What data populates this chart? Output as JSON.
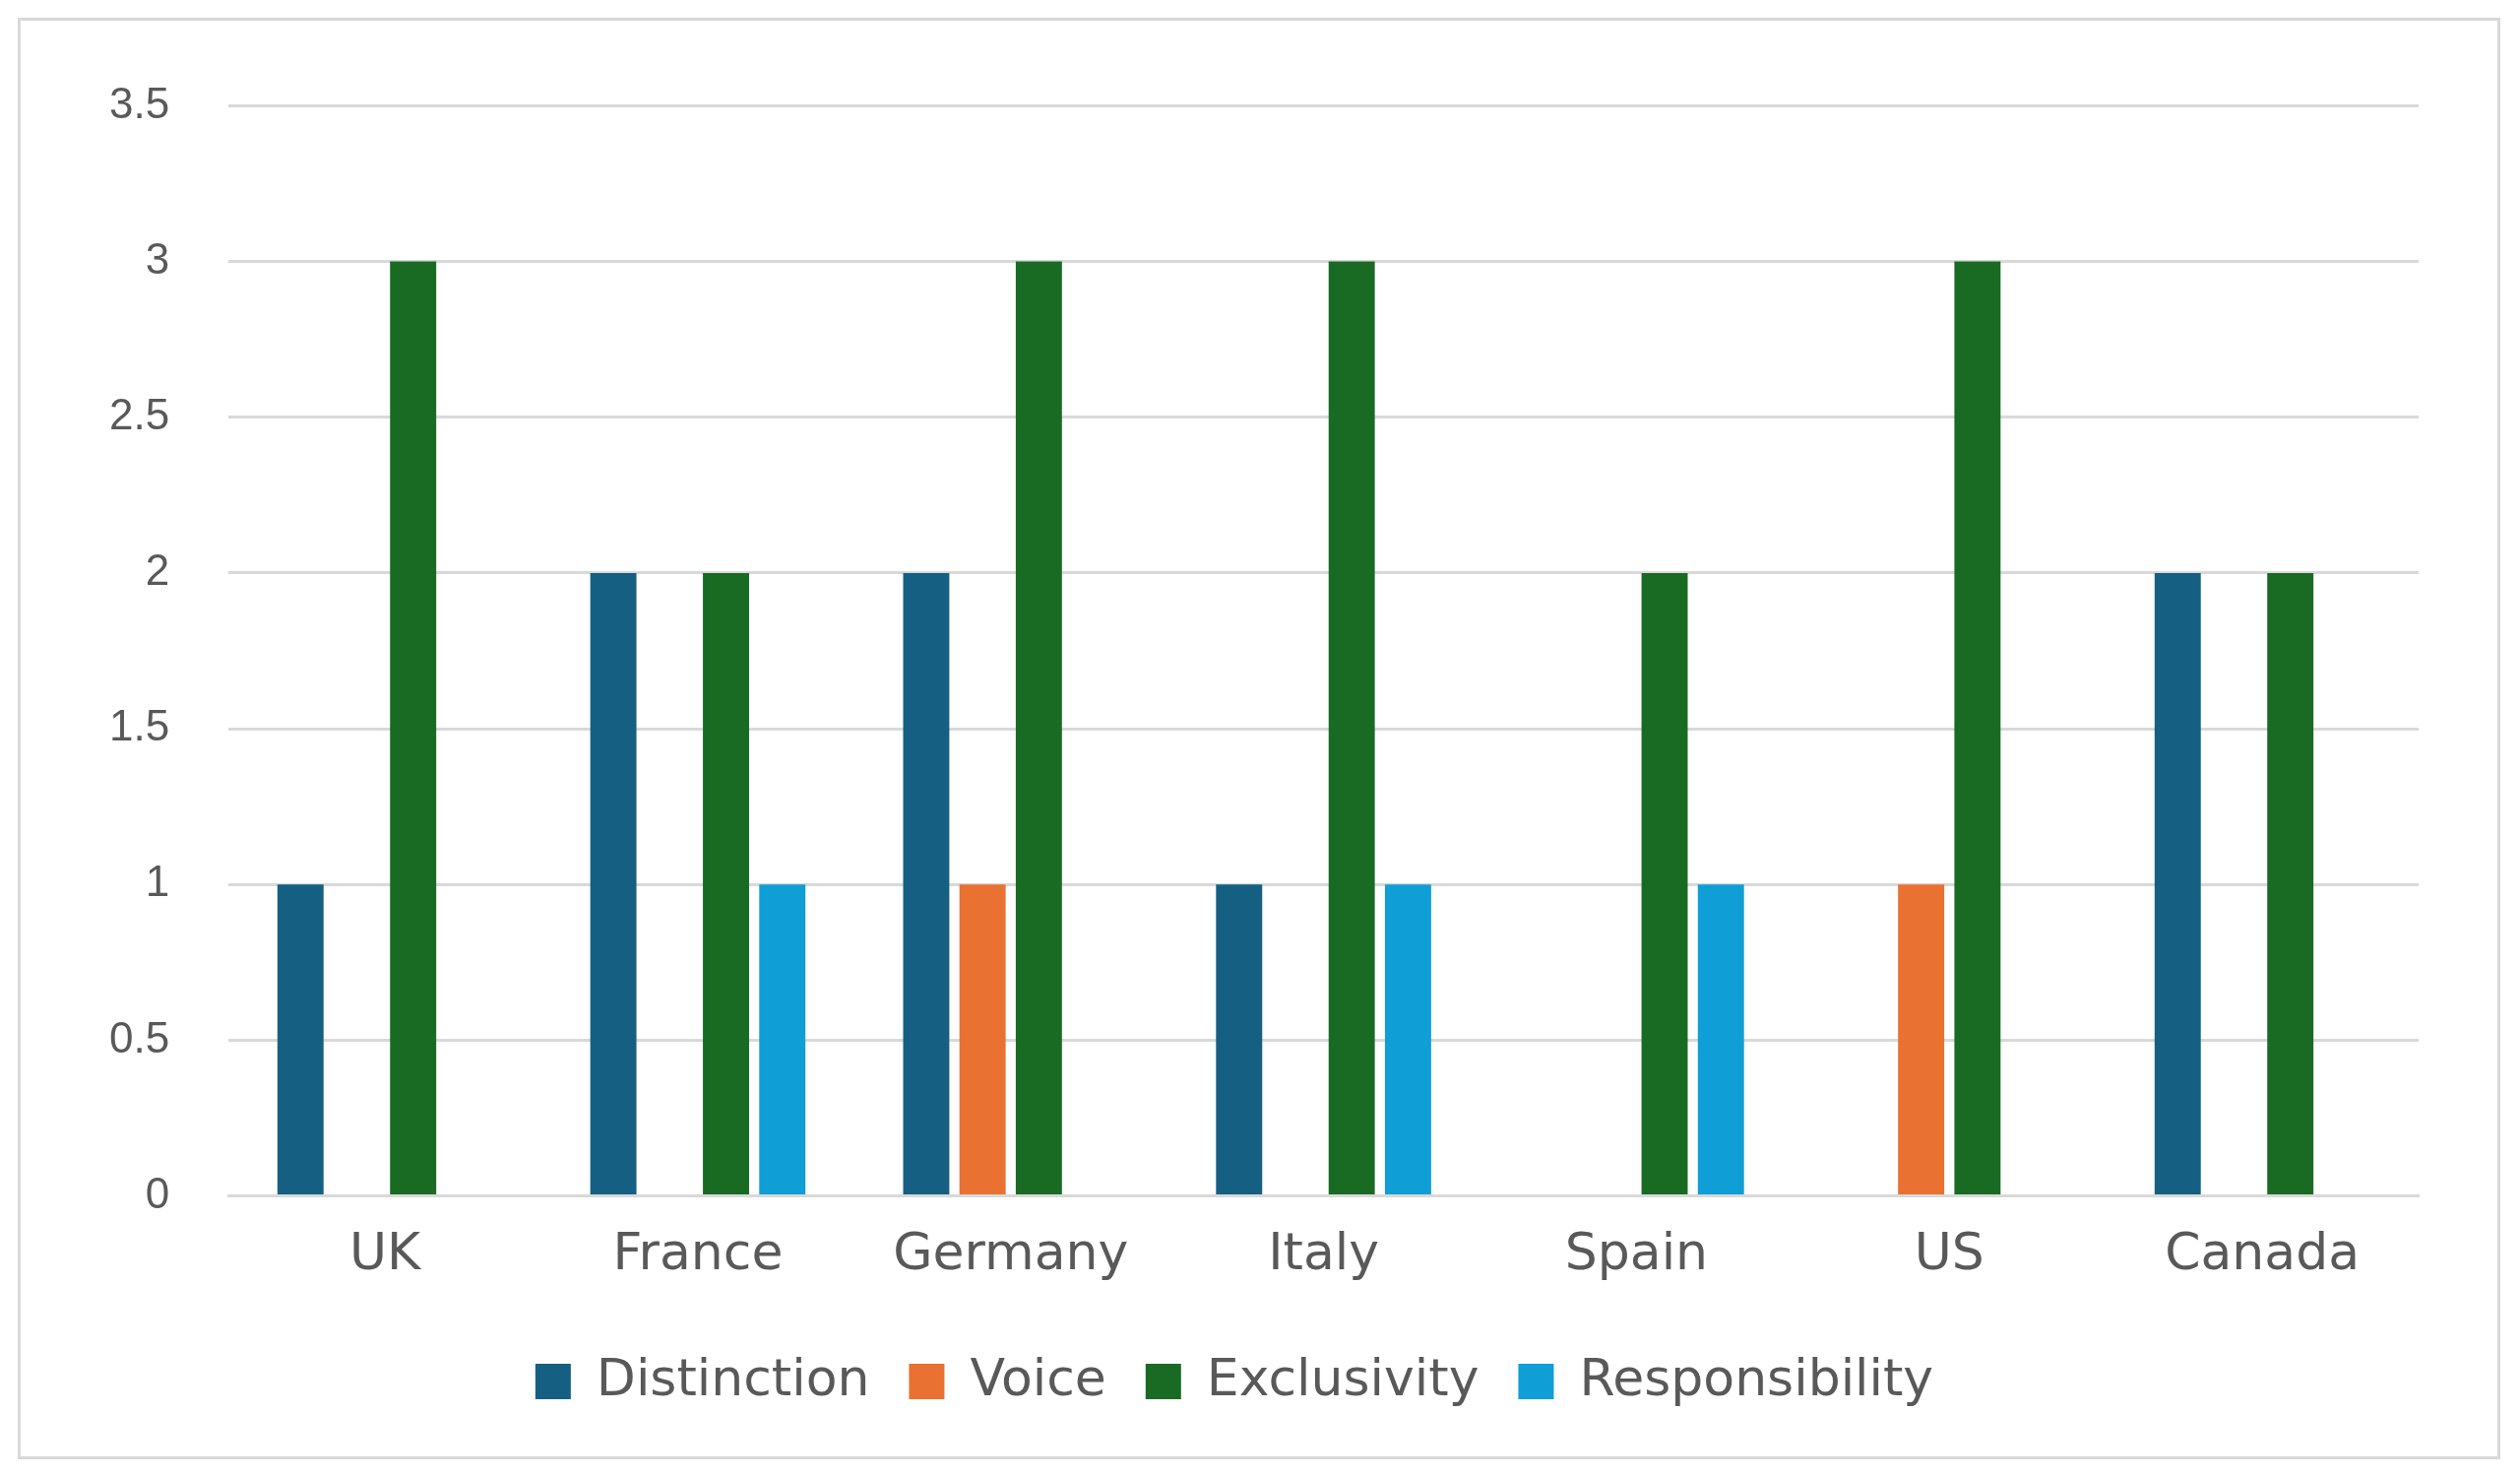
{
  "chart_data": {
    "type": "bar",
    "categories": [
      "UK",
      "France",
      "Germany",
      "Italy",
      "Spain",
      "US",
      "Canada"
    ],
    "series": [
      {
        "name": "Distinction",
        "color": "#156082",
        "values": [
          1,
          2,
          2,
          1,
          0,
          0,
          2
        ]
      },
      {
        "name": "Voice",
        "color": "#e97132",
        "values": [
          0,
          0,
          1,
          0,
          0,
          1,
          0
        ]
      },
      {
        "name": "Exclusivity",
        "color": "#196b24",
        "values": [
          3,
          2,
          3,
          3,
          2,
          3,
          2
        ]
      },
      {
        "name": "Responsibility",
        "color": "#0f9ed5",
        "values": [
          0,
          1,
          0,
          1,
          1,
          0,
          0
        ]
      }
    ],
    "ylim": [
      0,
      3.5
    ],
    "yticks": [
      0,
      0.5,
      1,
      1.5,
      2,
      2.5,
      3,
      3.5
    ],
    "grid": "y",
    "legend": "bottom"
  }
}
